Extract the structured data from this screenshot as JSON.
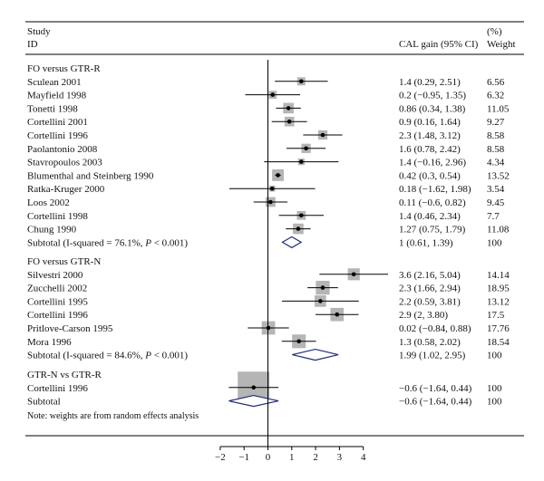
{
  "chart_data": {
    "type": "forest",
    "header": {
      "study_line1": "Study",
      "study_line2": "ID",
      "estimate": "CAL gain (95% CI)",
      "weight_line1": "(%)",
      "weight_line2": "Weight"
    },
    "x_ticks": [
      "−2",
      "−1",
      "0",
      "1",
      "2",
      "3",
      "4"
    ],
    "x_range": [
      -2,
      4
    ],
    "note": "Note: weights are from random effects analysis",
    "groups": [
      {
        "title": "FO versus GTR-R",
        "studies": [
          {
            "name": "Sculean 2001",
            "est": 1.4,
            "lo": 0.29,
            "hi": 2.51,
            "ci": "1.4 (0.29, 2.51)",
            "weight": "6.56",
            "w": 6.56
          },
          {
            "name": "Mayfield 1998",
            "est": 0.2,
            "lo": -0.95,
            "hi": 1.35,
            "ci": "0.2 (−0.95, 1.35)",
            "weight": "6.32",
            "w": 6.32
          },
          {
            "name": "Tonetti 1998",
            "est": 0.86,
            "lo": 0.34,
            "hi": 1.38,
            "ci": "0.86 (0.34, 1.38)",
            "weight": "11.05",
            "w": 11.05
          },
          {
            "name": "Cortellini 2001",
            "est": 0.9,
            "lo": 0.16,
            "hi": 1.64,
            "ci": "0.9 (0.16, 1.64)",
            "weight": "9.27",
            "w": 9.27
          },
          {
            "name": "Cortellini 1996",
            "est": 2.3,
            "lo": 1.48,
            "hi": 3.12,
            "ci": "2.3 (1.48, 3.12)",
            "weight": "8.58",
            "w": 8.58
          },
          {
            "name": "Paolantonio 2008",
            "est": 1.6,
            "lo": 0.78,
            "hi": 2.42,
            "ci": "1.6 (0.78, 2.42)",
            "weight": "8.58",
            "w": 8.58
          },
          {
            "name": "Stavropoulos 2003",
            "est": 1.4,
            "lo": -0.16,
            "hi": 2.96,
            "ci": "1.4 (−0.16, 2.96)",
            "weight": "4.34",
            "w": 4.34
          },
          {
            "name": "Blumenthal and Steinberg 1990",
            "est": 0.42,
            "lo": 0.3,
            "hi": 0.54,
            "ci": "0.42 (0.3, 0.54)",
            "weight": "13.52",
            "w": 13.52
          },
          {
            "name": "Ratka-Kruger 2000",
            "est": 0.18,
            "lo": -1.62,
            "hi": 1.98,
            "ci": "0.18 (−1.62, 1.98)",
            "weight": "3.54",
            "w": 3.54
          },
          {
            "name": "Loos 2002",
            "est": 0.11,
            "lo": -0.6,
            "hi": 0.82,
            "ci": "0.11 (−0.6, 0.82)",
            "weight": "9.45",
            "w": 9.45
          },
          {
            "name": "Cortellini 1998",
            "est": 1.4,
            "lo": 0.46,
            "hi": 2.34,
            "ci": "1.4 (0.46, 2.34)",
            "weight": "7.7",
            "w": 7.7
          },
          {
            "name": "Chung 1990",
            "est": 1.27,
            "lo": 0.75,
            "hi": 1.79,
            "ci": "1.27 (0.75, 1.79)",
            "weight": "11.08",
            "w": 11.08
          }
        ],
        "subtotal": {
          "pre": "Subtotal (I-squared = 76.1%, ",
          "p": "P",
          "post": " < 0.001)",
          "est": 1.0,
          "lo": 0.61,
          "hi": 1.39,
          "ci": "1 (0.61, 1.39)",
          "weight": "100"
        }
      },
      {
        "title": "FO versus GTR-N",
        "studies": [
          {
            "name": "Silvestri 2000",
            "est": 3.6,
            "lo": 2.16,
            "hi": 5.04,
            "ci": "3.6 (2.16, 5.04)",
            "weight": "14.14",
            "w": 14.14
          },
          {
            "name": "Zucchelli 2002",
            "est": 2.3,
            "lo": 1.66,
            "hi": 2.94,
            "ci": "2.3 (1.66, 2.94)",
            "weight": "18.95",
            "w": 18.95
          },
          {
            "name": "Cortellini 1995",
            "est": 2.2,
            "lo": 0.59,
            "hi": 3.81,
            "ci": "2.2 (0.59, 3.81)",
            "weight": "13.12",
            "w": 13.12
          },
          {
            "name": "Cortellini 1996",
            "est": 2.9,
            "lo": 2.0,
            "hi": 3.8,
            "ci": "2.9 (2, 3.80)",
            "weight": "17.5",
            "w": 17.5
          },
          {
            "name": "Pritlove-Carson 1995",
            "est": 0.02,
            "lo": -0.84,
            "hi": 0.88,
            "ci": "0.02 (−0.84, 0.88)",
            "weight": "17.76",
            "w": 17.76
          },
          {
            "name": "Mora 1996",
            "est": 1.3,
            "lo": 0.58,
            "hi": 2.02,
            "ci": "1.3 (0.58, 2.02)",
            "weight": "18.54",
            "w": 18.54
          }
        ],
        "subtotal": {
          "pre": "Subtotal (I-squared = 84.6%, ",
          "p": "P",
          "post": " < 0.001)",
          "est": 1.99,
          "lo": 1.02,
          "hi": 2.95,
          "ci": "1.99 (1.02, 2.95)",
          "weight": "100"
        }
      },
      {
        "title": "GTR-N vs GTR-R",
        "studies": [
          {
            "name": "Cortellini 1996",
            "est": -0.6,
            "lo": -1.64,
            "hi": 0.44,
            "ci": "−0.6 (−1.64, 0.44)",
            "weight": "100",
            "w": 100
          }
        ],
        "subtotal": {
          "pre": "Subtotal",
          "p": "",
          "post": "",
          "est": -0.6,
          "lo": -1.64,
          "hi": 0.44,
          "ci": "−0.6 (−1.64, 0.44)",
          "weight": "100"
        }
      }
    ]
  }
}
